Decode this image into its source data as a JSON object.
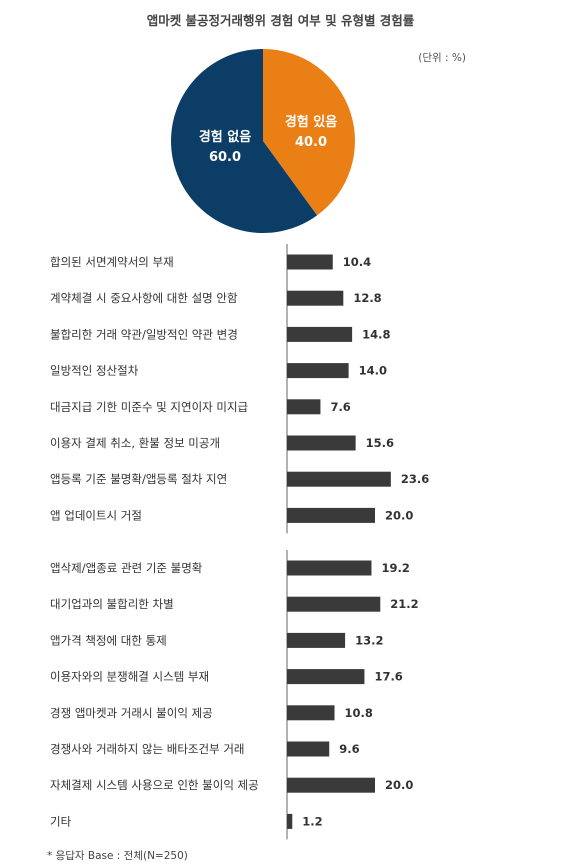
{
  "title": "앱마켓 불공정거래행위 경험 여부 및 유형별 경험률",
  "unit_label": "(단위 : %)",
  "footnote": "* 응답자 Base : 전체(N=250)",
  "colors": {
    "pie_no": "#0b3d66",
    "pie_yes": "#ea7f16",
    "bar": "#3a3a3a",
    "axis": "#666666"
  },
  "pie_labels": {
    "no_name": "경험 없음",
    "no_value": "60.0",
    "yes_name": "경험 있음",
    "yes_value": "40.0"
  },
  "chart_data": [
    {
      "type": "pie",
      "categories": [
        "경험 없음",
        "경험 있음"
      ],
      "values": [
        60.0,
        40.0
      ]
    },
    {
      "type": "bar",
      "orientation": "horizontal",
      "groups": [
        {
          "categories": [
            "합의된 서면계약서의 부재",
            "계약체결 시 중요사항에 대한 설명 안함",
            "불합리한 거래 약관/일방적인 약관 변경",
            "일방적인 정산절차",
            "대금지급 기한 미준수 및 지연이자 미지급",
            "이용자 결제 취소, 환불 정보 미공개",
            "앱등록 기준 불명확/앱등록 절차 지연",
            "앱 업데이트시 거절"
          ],
          "values": [
            10.4,
            12.8,
            14.8,
            14.0,
            7.6,
            15.6,
            23.6,
            20.0
          ],
          "labels": [
            "10.4",
            "12.8",
            "14.8",
            "14.0",
            "7.6",
            "15.6",
            "23.6",
            "20.0"
          ]
        },
        {
          "categories": [
            "앱삭제/앱종료 관련 기준 불명확",
            "대기업과의 불합리한 차별",
            "앱가격 책정에 대한 통제",
            "이용자와의 분쟁해결 시스템 부재",
            "경쟁 앱마켓과 거래시 불이익 제공",
            "경쟁사와 거래하지 않는 배타조건부 거래",
            "자체결제 시스템 사용으로 인한 불이익 제공",
            "기타"
          ],
          "values": [
            19.2,
            21.2,
            13.2,
            17.6,
            10.8,
            9.6,
            20.0,
            1.2
          ],
          "labels": [
            "19.2",
            "21.2",
            "13.2",
            "17.6",
            "10.8",
            "9.6",
            "20.0",
            "1.2"
          ]
        }
      ]
    }
  ]
}
